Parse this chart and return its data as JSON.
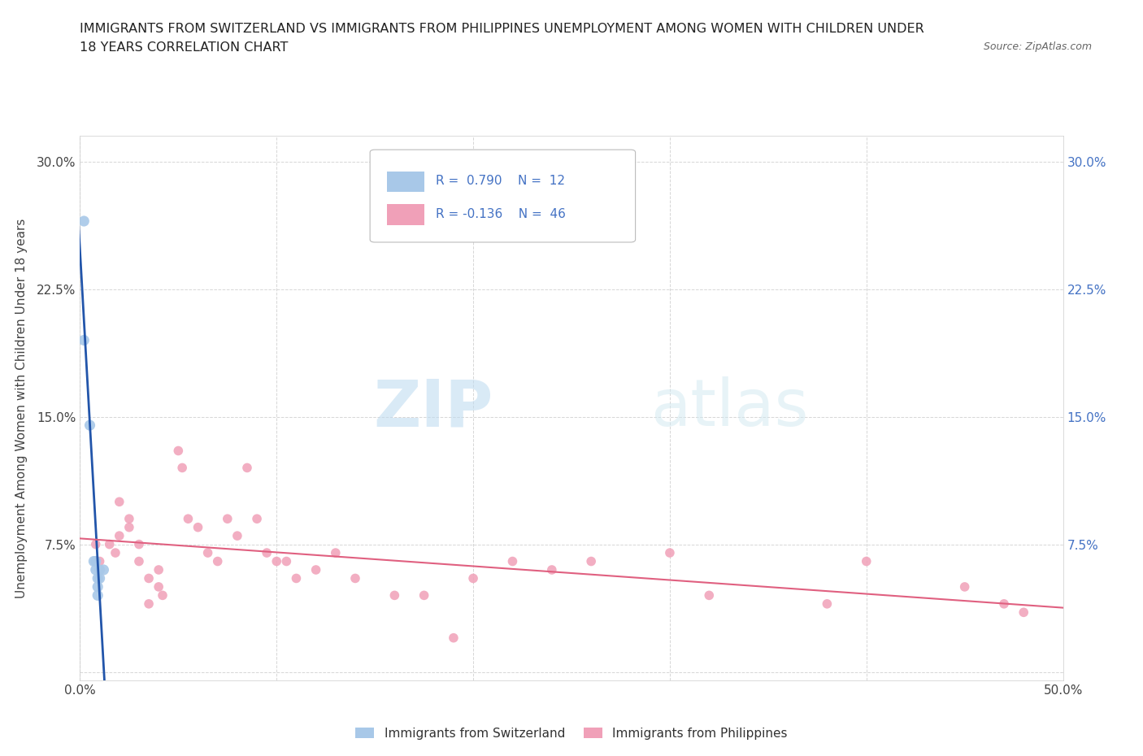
{
  "title_line1": "IMMIGRANTS FROM SWITZERLAND VS IMMIGRANTS FROM PHILIPPINES UNEMPLOYMENT AMONG WOMEN WITH CHILDREN UNDER",
  "title_line2": "18 YEARS CORRELATION CHART",
  "source": "Source: ZipAtlas.com",
  "ylabel": "Unemployment Among Women with Children Under 18 years",
  "xlim": [
    0.0,
    0.5
  ],
  "ylim": [
    -0.005,
    0.315
  ],
  "xtick_positions": [
    0.0,
    0.1,
    0.2,
    0.3,
    0.4,
    0.5
  ],
  "xticklabels": [
    "0.0%",
    "",
    "",
    "",
    "",
    "50.0%"
  ],
  "ytick_positions": [
    0.0,
    0.075,
    0.15,
    0.225,
    0.3
  ],
  "ytick_labels_left": [
    "",
    "7.5%",
    "15.0%",
    "22.5%",
    "30.0%"
  ],
  "ytick_labels_right": [
    "",
    "7.5%",
    "15.0%",
    "22.5%",
    "30.0%"
  ],
  "color_swiss": "#A8C8E8",
  "color_phil": "#F0A0B8",
  "color_swiss_line": "#2255AA",
  "color_swiss_dash": "#88AADA",
  "color_phil_line": "#E06080",
  "watermark_color": "#C8E0F0",
  "swiss_x": [
    0.002,
    0.002,
    0.005,
    0.007,
    0.008,
    0.008,
    0.009,
    0.009,
    0.009,
    0.01,
    0.01,
    0.012
  ],
  "swiss_y": [
    0.265,
    0.195,
    0.145,
    0.065,
    0.065,
    0.06,
    0.055,
    0.05,
    0.045,
    0.06,
    0.055,
    0.06
  ],
  "phil_x": [
    0.008,
    0.01,
    0.015,
    0.018,
    0.02,
    0.02,
    0.025,
    0.025,
    0.03,
    0.03,
    0.035,
    0.035,
    0.04,
    0.04,
    0.042,
    0.05,
    0.052,
    0.055,
    0.06,
    0.065,
    0.07,
    0.075,
    0.08,
    0.085,
    0.09,
    0.095,
    0.1,
    0.105,
    0.11,
    0.12,
    0.13,
    0.14,
    0.16,
    0.175,
    0.19,
    0.2,
    0.22,
    0.24,
    0.26,
    0.3,
    0.32,
    0.38,
    0.4,
    0.45,
    0.47,
    0.48
  ],
  "phil_y": [
    0.075,
    0.065,
    0.075,
    0.07,
    0.1,
    0.08,
    0.09,
    0.085,
    0.065,
    0.075,
    0.04,
    0.055,
    0.06,
    0.05,
    0.045,
    0.13,
    0.12,
    0.09,
    0.085,
    0.07,
    0.065,
    0.09,
    0.08,
    0.12,
    0.09,
    0.07,
    0.065,
    0.065,
    0.055,
    0.06,
    0.07,
    0.055,
    0.045,
    0.045,
    0.02,
    0.055,
    0.065,
    0.06,
    0.065,
    0.07,
    0.045,
    0.04,
    0.065,
    0.05,
    0.04,
    0.035
  ]
}
